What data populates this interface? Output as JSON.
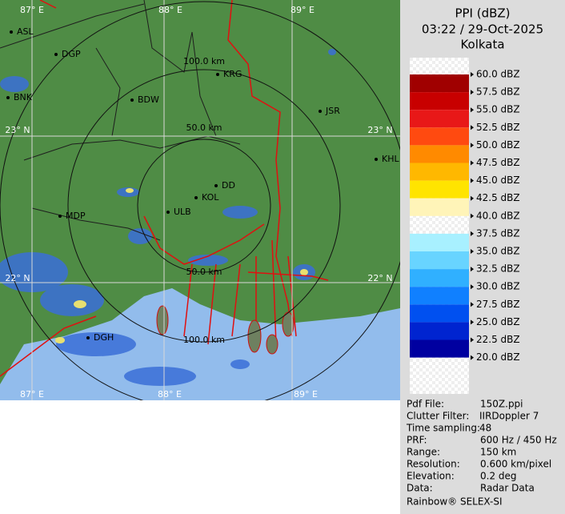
{
  "header": {
    "title": "PPI (dBZ)",
    "time": "03:22 / 29-Oct-2025",
    "site": "Kolkata"
  },
  "legend": [
    {
      "label": "60.0 dBZ",
      "color": null
    },
    {
      "label": "57.5 dBZ",
      "color": "#a00000"
    },
    {
      "label": "55.0 dBZ",
      "color": "#c80000"
    },
    {
      "label": "52.5 dBZ",
      "color": "#e81818"
    },
    {
      "label": "50.0 dBZ",
      "color": "#ff4a10"
    },
    {
      "label": "47.5 dBZ",
      "color": "#ff8a00"
    },
    {
      "label": "45.0 dBZ",
      "color": "#ffb800"
    },
    {
      "label": "42.5 dBZ",
      "color": "#ffe400"
    },
    {
      "label": "40.0 dBZ",
      "color": "#fff4b8"
    },
    {
      "label": "37.5 dBZ",
      "color": null
    },
    {
      "label": "35.0 dBZ",
      "color": "#a8f0ff"
    },
    {
      "label": "32.5 dBZ",
      "color": "#68d4ff"
    },
    {
      "label": "30.0 dBZ",
      "color": "#30b0ff"
    },
    {
      "label": "27.5 dBZ",
      "color": "#1080ff"
    },
    {
      "label": "25.0 dBZ",
      "color": "#0050f0"
    },
    {
      "label": "22.5 dBZ",
      "color": "#0024d0"
    },
    {
      "label": "20.0 dBZ",
      "color": "#0000a0"
    }
  ],
  "map": {
    "grid_labels": [
      "87° E",
      "88° E",
      "89° E",
      "23° N",
      "23° N",
      "22° N",
      "22° N",
      "87° E",
      "88° E",
      "89° E"
    ],
    "ring_labels": [
      "100.0 km",
      "50.0 km",
      "50.0 km",
      "100.0 km"
    ],
    "places": [
      "ASL",
      "DGP",
      "BDW",
      "KRG",
      "JSR",
      "KHL",
      "BNK",
      "DD",
      "KOL",
      "ULB",
      "MDP",
      "DGH"
    ]
  },
  "info": [
    {
      "label": "Pdf File:",
      "value": "150Z.ppi"
    },
    {
      "label": "Clutter Filter:",
      "value": "IIRDoppler 7"
    },
    {
      "label": "Time sampling:",
      "value": "48"
    },
    {
      "label": "PRF:",
      "value": "600 Hz / 450 Hz"
    },
    {
      "label": "Range:",
      "value": "150 km"
    },
    {
      "label": "Resolution:",
      "value": "0.600 km/pixel"
    },
    {
      "label": "Elevation:",
      "value": "0.2 deg"
    },
    {
      "label": "Data:",
      "value": "Radar Data"
    }
  ],
  "footer": "Rainbow® SELEX-SI"
}
